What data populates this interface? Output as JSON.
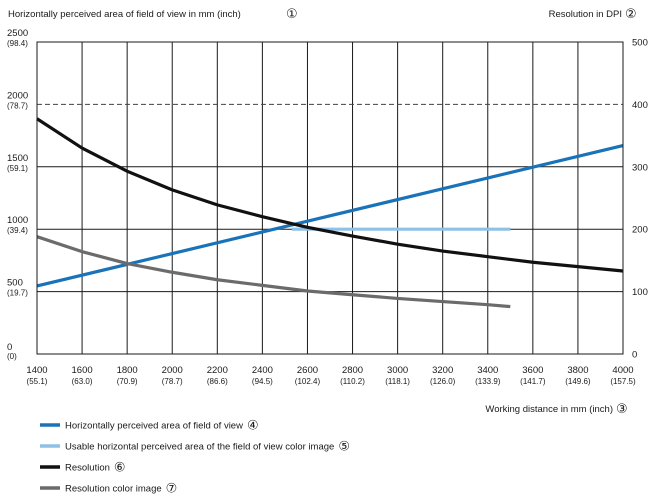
{
  "chart_data": {
    "type": "line",
    "left_axis_label": "Horizontally perceived area of field of view in mm (inch)",
    "left_axis_marker": "①",
    "right_axis_label": "Resolution in DPI",
    "right_axis_marker": "②",
    "x_axis_label": "Working distance in mm (inch)",
    "x_axis_marker": "③",
    "xlim": [
      1400,
      4000
    ],
    "ylim_left": [
      0,
      2500
    ],
    "ylim_right": [
      0,
      500
    ],
    "x_ticks": [
      {
        "value": 1400,
        "label": "1400",
        "sub": "(55.1)"
      },
      {
        "value": 1600,
        "label": "1600",
        "sub": "(63.0)"
      },
      {
        "value": 1800,
        "label": "1800",
        "sub": "(70.9)"
      },
      {
        "value": 2000,
        "label": "2000",
        "sub": "(78.7)"
      },
      {
        "value": 2200,
        "label": "2200",
        "sub": "(86.6)"
      },
      {
        "value": 2400,
        "label": "2400",
        "sub": "(94.5)"
      },
      {
        "value": 2600,
        "label": "2600",
        "sub": "(102.4)"
      },
      {
        "value": 2800,
        "label": "2800",
        "sub": "(110.2)"
      },
      {
        "value": 3000,
        "label": "3000",
        "sub": "(118.1)"
      },
      {
        "value": 3200,
        "label": "3200",
        "sub": "(126.0)"
      },
      {
        "value": 3400,
        "label": "3400",
        "sub": "(133.9)"
      },
      {
        "value": 3600,
        "label": "3600",
        "sub": "(141.7)"
      },
      {
        "value": 3800,
        "label": "3800",
        "sub": "(149.6)"
      },
      {
        "value": 4000,
        "label": "4000",
        "sub": "(157.5)"
      }
    ],
    "y_left_ticks": [
      {
        "value": 0,
        "label": "0",
        "sub": "(0)"
      },
      {
        "value": 500,
        "label": "500",
        "sub": "(19.7)"
      },
      {
        "value": 1000,
        "label": "1000",
        "sub": "(39.4)"
      },
      {
        "value": 1500,
        "label": "1500",
        "sub": "(59.1)"
      },
      {
        "value": 2000,
        "label": "2000",
        "sub": "(78.7)"
      },
      {
        "value": 2500,
        "label": "2500",
        "sub": "(98.4)"
      }
    ],
    "y_right_ticks": [
      {
        "value": 0,
        "label": "0"
      },
      {
        "value": 100,
        "label": "100"
      },
      {
        "value": 200,
        "label": "200"
      },
      {
        "value": 300,
        "label": "300"
      },
      {
        "value": 400,
        "label": "400"
      },
      {
        "value": 500,
        "label": "500"
      }
    ],
    "dashed_reference_left": 2000,
    "series": [
      {
        "name": "Horizontally perceived area of field of view",
        "marker": "④",
        "axis": "left",
        "color": "#1a73b8",
        "x": [
          1400,
          4000
        ],
        "y": [
          545,
          1670
        ]
      },
      {
        "name": "Usable horizontal perceived area of the field of view color image",
        "marker": "⑤",
        "axis": "left",
        "color": "#8fc0e6",
        "x": [
          2530,
          3500
        ],
        "y": [
          1000,
          1000
        ]
      },
      {
        "name": "Resolution",
        "marker": "⑥",
        "axis": "right",
        "color": "#111111",
        "x": [
          1400,
          1600,
          1800,
          2000,
          2200,
          2400,
          2600,
          2800,
          3000,
          3200,
          3400,
          3600,
          3800,
          4000
        ],
        "y": [
          377,
          330,
          293,
          263,
          239,
          220,
          203,
          189,
          176,
          165,
          156,
          147,
          140,
          133
        ]
      },
      {
        "name": "Resolution color image",
        "marker": "⑦",
        "axis": "right",
        "color": "#6b6b6b",
        "x": [
          1400,
          1600,
          1800,
          2000,
          2200,
          2400,
          2600,
          2800,
          3000,
          3200,
          3400,
          3500
        ],
        "y": [
          188,
          164,
          145,
          131,
          119,
          110,
          101,
          95,
          89,
          84,
          79,
          76
        ]
      }
    ]
  }
}
